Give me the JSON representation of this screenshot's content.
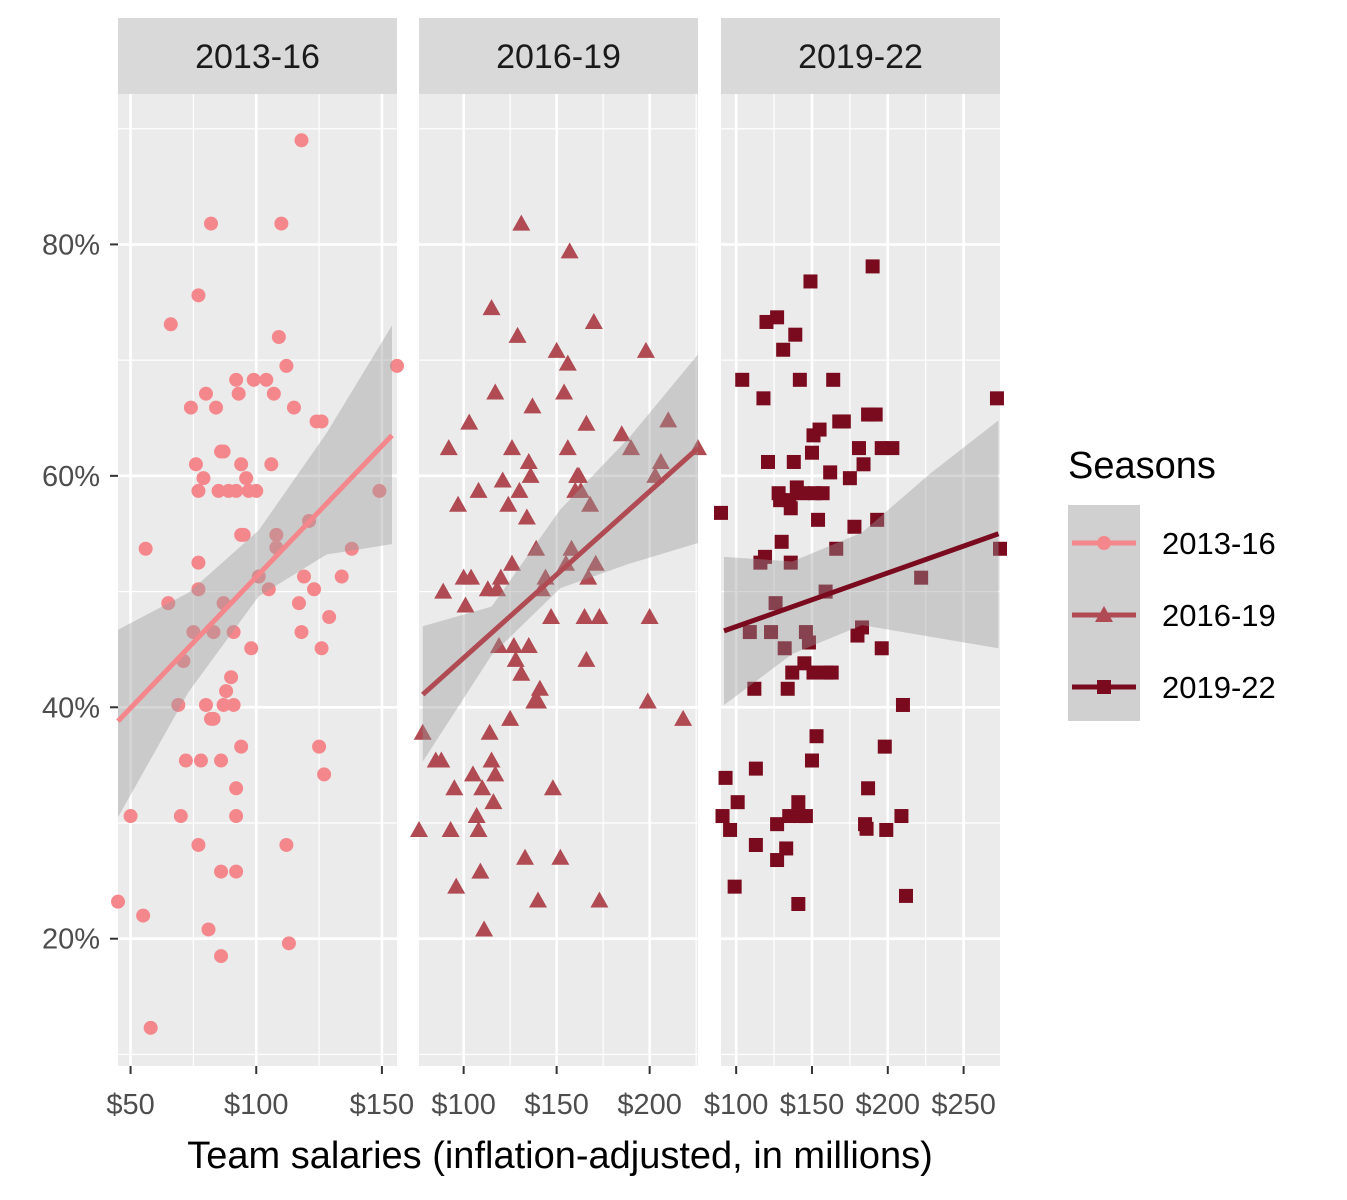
{
  "chart_data": {
    "type": "scatter",
    "xlabel": "Team salaries (inflation-adjusted, in millions)",
    "ylabel": "",
    "ylim": [
      0.09,
      0.93
    ],
    "y_ticks": [
      0.2,
      0.4,
      0.6,
      0.8
    ],
    "y_tick_labels": [
      "20%",
      "40%",
      "60%",
      "80%"
    ],
    "grid": true,
    "legend": {
      "title": "Seasons",
      "position": "right"
    },
    "colors": {
      "2013-16": "#F4878C",
      "2016-19": "#B04B53",
      "2019-22": "#7A0A1E"
    },
    "series": [
      {
        "name": "2013-16",
        "shape": "circle",
        "xlim": [
          45,
          156
        ],
        "x_ticks": [
          50,
          100,
          150
        ],
        "x_tick_labels": [
          "$50",
          "$100",
          "$150"
        ],
        "trend": {
          "x": [
            45,
            154
          ],
          "y": [
            0.388,
            0.635
          ]
        },
        "band": {
          "x": [
            45,
            73,
            101,
            128,
            154
          ],
          "lo": [
            0.305,
            0.413,
            0.496,
            0.532,
            0.541
          ],
          "hi": [
            0.467,
            0.499,
            0.553,
            0.637,
            0.73
          ]
        },
        "points": [
          [
            45,
            0.232
          ],
          [
            50,
            0.306
          ],
          [
            55,
            0.22
          ],
          [
            56,
            0.537
          ],
          [
            58,
            0.123
          ],
          [
            65,
            0.49
          ],
          [
            66,
            0.731
          ],
          [
            69,
            0.402
          ],
          [
            70,
            0.306
          ],
          [
            71,
            0.44
          ],
          [
            72,
            0.354
          ],
          [
            74,
            0.659
          ],
          [
            75,
            0.465
          ],
          [
            76,
            0.61
          ],
          [
            77,
            0.587
          ],
          [
            77,
            0.756
          ],
          [
            77,
            0.525
          ],
          [
            77,
            0.502
          ],
          [
            77,
            0.281
          ],
          [
            78,
            0.354
          ],
          [
            79,
            0.598
          ],
          [
            80,
            0.402
          ],
          [
            80,
            0.671
          ],
          [
            81,
            0.208
          ],
          [
            82,
            0.818
          ],
          [
            82,
            0.39
          ],
          [
            83,
            0.465
          ],
          [
            83,
            0.39
          ],
          [
            84,
            0.659
          ],
          [
            85,
            0.587
          ],
          [
            86,
            0.621
          ],
          [
            86,
            0.354
          ],
          [
            86,
            0.258
          ],
          [
            86,
            0.185
          ],
          [
            87,
            0.49
          ],
          [
            87,
            0.621
          ],
          [
            87,
            0.402
          ],
          [
            88,
            0.414
          ],
          [
            89,
            0.587
          ],
          [
            90,
            0.426
          ],
          [
            91,
            0.465
          ],
          [
            91,
            0.402
          ],
          [
            92,
            0.683
          ],
          [
            92,
            0.587
          ],
          [
            92,
            0.33
          ],
          [
            92,
            0.306
          ],
          [
            92,
            0.258
          ],
          [
            93,
            0.671
          ],
          [
            94,
            0.61
          ],
          [
            94,
            0.549
          ],
          [
            94,
            0.366
          ],
          [
            95,
            0.549
          ],
          [
            96,
            0.598
          ],
          [
            97,
            0.587
          ],
          [
            98,
            0.451
          ],
          [
            99,
            0.683
          ],
          [
            100,
            0.587
          ],
          [
            101,
            0.513
          ],
          [
            104,
            0.683
          ],
          [
            105,
            0.502
          ],
          [
            106,
            0.61
          ],
          [
            107,
            0.671
          ],
          [
            108,
            0.549
          ],
          [
            108,
            0.538
          ],
          [
            109,
            0.72
          ],
          [
            110,
            0.818
          ],
          [
            112,
            0.695
          ],
          [
            112,
            0.281
          ],
          [
            113,
            0.196
          ],
          [
            115,
            0.659
          ],
          [
            117,
            0.49
          ],
          [
            118,
            0.89
          ],
          [
            118,
            0.465
          ],
          [
            119,
            0.513
          ],
          [
            121,
            0.561
          ],
          [
            123,
            0.502
          ],
          [
            124,
            0.647
          ],
          [
            125,
            0.366
          ],
          [
            126,
            0.647
          ],
          [
            126,
            0.451
          ],
          [
            127,
            0.342
          ],
          [
            129,
            0.478
          ],
          [
            134,
            0.513
          ],
          [
            138,
            0.537
          ],
          [
            149,
            0.587
          ],
          [
            156,
            0.695
          ]
        ]
      },
      {
        "name": "2016-19",
        "shape": "triangle",
        "xlim": [
          76,
          226
        ],
        "x_ticks": [
          100,
          150,
          200
        ],
        "x_tick_labels": [
          "$100",
          "$150",
          "$200"
        ],
        "trend": {
          "x": [
            78,
            226
          ],
          "y": [
            0.411,
            0.624
          ]
        },
        "band": {
          "x": [
            78,
            115,
            152,
            189,
            226
          ],
          "lo": [
            0.353,
            0.445,
            0.503,
            0.524,
            0.542
          ],
          "hi": [
            0.47,
            0.487,
            0.571,
            0.633,
            0.705
          ]
        },
        "points": [
          [
            76,
            0.294
          ],
          [
            78,
            0.378
          ],
          [
            85,
            0.354
          ],
          [
            88,
            0.354
          ],
          [
            89,
            0.5
          ],
          [
            92,
            0.624
          ],
          [
            93,
            0.294
          ],
          [
            95,
            0.33
          ],
          [
            96,
            0.245
          ],
          [
            97,
            0.575
          ],
          [
            100,
            0.512
          ],
          [
            101,
            0.488
          ],
          [
            103,
            0.646
          ],
          [
            104,
            0.512
          ],
          [
            105,
            0.342
          ],
          [
            107,
            0.306
          ],
          [
            108,
            0.587
          ],
          [
            108,
            0.294
          ],
          [
            109,
            0.258
          ],
          [
            110,
            0.33
          ],
          [
            111,
            0.208
          ],
          [
            113,
            0.502
          ],
          [
            114,
            0.378
          ],
          [
            115,
            0.354
          ],
          [
            115,
            0.745
          ],
          [
            116,
            0.318
          ],
          [
            117,
            0.342
          ],
          [
            117,
            0.672
          ],
          [
            118,
            0.502
          ],
          [
            119,
            0.453
          ],
          [
            120,
            0.512
          ],
          [
            121,
            0.596
          ],
          [
            124,
            0.575
          ],
          [
            125,
            0.39
          ],
          [
            126,
            0.624
          ],
          [
            126,
            0.524
          ],
          [
            127,
            0.453
          ],
          [
            128,
            0.441
          ],
          [
            129,
            0.721
          ],
          [
            130,
            0.587
          ],
          [
            131,
            0.818
          ],
          [
            131,
            0.429
          ],
          [
            133,
            0.27
          ],
          [
            134,
            0.564
          ],
          [
            135,
            0.612
          ],
          [
            135,
            0.453
          ],
          [
            136,
            0.6
          ],
          [
            137,
            0.66
          ],
          [
            138,
            0.405
          ],
          [
            139,
            0.537
          ],
          [
            140,
            0.405
          ],
          [
            140,
            0.233
          ],
          [
            141,
            0.416
          ],
          [
            142,
            0.502
          ],
          [
            144,
            0.512
          ],
          [
            147,
            0.478
          ],
          [
            148,
            0.33
          ],
          [
            150,
            0.708
          ],
          [
            152,
            0.27
          ],
          [
            154,
            0.672
          ],
          [
            155,
            0.524
          ],
          [
            156,
            0.697
          ],
          [
            156,
            0.624
          ],
          [
            157,
            0.794
          ],
          [
            158,
            0.537
          ],
          [
            160,
            0.587
          ],
          [
            161,
            0.6
          ],
          [
            162,
            0.6
          ],
          [
            163,
            0.587
          ],
          [
            165,
            0.478
          ],
          [
            166,
            0.645
          ],
          [
            166,
            0.441
          ],
          [
            167,
            0.512
          ],
          [
            168,
            0.575
          ],
          [
            170,
            0.733
          ],
          [
            171,
            0.524
          ],
          [
            173,
            0.233
          ],
          [
            173,
            0.478
          ],
          [
            185,
            0.636
          ],
          [
            190,
            0.624
          ],
          [
            198,
            0.708
          ],
          [
            199,
            0.405
          ],
          [
            200,
            0.478
          ],
          [
            203,
            0.6
          ],
          [
            206,
            0.612
          ],
          [
            210,
            0.648
          ],
          [
            218,
            0.39
          ],
          [
            226,
            0.624
          ]
        ]
      },
      {
        "name": "2019-22",
        "shape": "square",
        "xlim": [
          90,
          274
        ],
        "x_ticks": [
          100,
          150,
          200,
          250
        ],
        "x_tick_labels": [
          "$100",
          "$150",
          "$200",
          "$250"
        ],
        "trend": {
          "x": [
            92,
            273
          ],
          "y": [
            0.466,
            0.55
          ]
        },
        "band": {
          "x": [
            92,
            137,
            183,
            228,
            273
          ],
          "lo": [
            0.402,
            0.446,
            0.471,
            0.461,
            0.451
          ],
          "hi": [
            0.53,
            0.526,
            0.551,
            0.602,
            0.648
          ]
        },
        "points": [
          [
            90,
            0.568
          ],
          [
            91,
            0.306
          ],
          [
            93,
            0.339
          ],
          [
            96,
            0.294
          ],
          [
            99,
            0.245
          ],
          [
            101,
            0.318
          ],
          [
            104,
            0.683
          ],
          [
            109,
            0.465
          ],
          [
            112,
            0.416
          ],
          [
            113,
            0.347
          ],
          [
            113,
            0.281
          ],
          [
            116,
            0.525
          ],
          [
            118,
            0.667
          ],
          [
            119,
            0.53
          ],
          [
            120,
            0.733
          ],
          [
            121,
            0.612
          ],
          [
            123,
            0.465
          ],
          [
            126,
            0.49
          ],
          [
            127,
            0.268
          ],
          [
            127,
            0.299
          ],
          [
            127,
            0.737
          ],
          [
            128,
            0.585
          ],
          [
            129,
            0.579
          ],
          [
            130,
            0.543
          ],
          [
            131,
            0.709
          ],
          [
            132,
            0.451
          ],
          [
            133,
            0.278
          ],
          [
            134,
            0.416
          ],
          [
            135,
            0.306
          ],
          [
            135,
            0.579
          ],
          [
            136,
            0.525
          ],
          [
            136,
            0.572
          ],
          [
            137,
            0.43
          ],
          [
            138,
            0.612
          ],
          [
            139,
            0.722
          ],
          [
            140,
            0.59
          ],
          [
            141,
            0.318
          ],
          [
            141,
            0.23
          ],
          [
            142,
            0.683
          ],
          [
            143,
            0.306
          ],
          [
            144,
            0.585
          ],
          [
            145,
            0.438
          ],
          [
            146,
            0.465
          ],
          [
            146,
            0.306
          ],
          [
            148,
            0.456
          ],
          [
            149,
            0.768
          ],
          [
            150,
            0.354
          ],
          [
            150,
            0.62
          ],
          [
            151,
            0.635
          ],
          [
            151,
            0.43
          ],
          [
            152,
            0.585
          ],
          [
            153,
            0.375
          ],
          [
            154,
            0.562
          ],
          [
            155,
            0.64
          ],
          [
            157,
            0.585
          ],
          [
            159,
            0.5
          ],
          [
            160,
            0.43
          ],
          [
            162,
            0.603
          ],
          [
            163,
            0.43
          ],
          [
            164,
            0.683
          ],
          [
            166,
            0.537
          ],
          [
            168,
            0.647
          ],
          [
            171,
            0.647
          ],
          [
            175,
            0.598
          ],
          [
            178,
            0.556
          ],
          [
            180,
            0.462
          ],
          [
            181,
            0.624
          ],
          [
            183,
            0.469
          ],
          [
            184,
            0.61
          ],
          [
            185,
            0.299
          ],
          [
            186,
            0.295
          ],
          [
            187,
            0.653
          ],
          [
            187,
            0.33
          ],
          [
            190,
            0.781
          ],
          [
            192,
            0.653
          ],
          [
            193,
            0.562
          ],
          [
            196,
            0.624
          ],
          [
            196,
            0.451
          ],
          [
            198,
            0.366
          ],
          [
            199,
            0.294
          ],
          [
            203,
            0.624
          ],
          [
            209,
            0.306
          ],
          [
            210,
            0.402
          ],
          [
            212,
            0.237
          ],
          [
            222,
            0.512
          ],
          [
            272,
            0.667
          ],
          [
            274,
            0.537
          ]
        ]
      }
    ]
  }
}
